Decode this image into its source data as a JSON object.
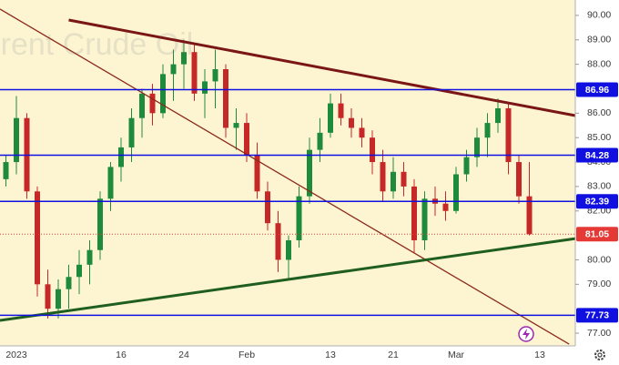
{
  "chart_data": {
    "type": "candlestick",
    "watermark": "Brent Crude Oil",
    "categories": [
      null,
      null,
      "2023",
      null,
      null,
      null,
      null,
      null,
      null,
      null,
      null,
      null,
      "16",
      null,
      null,
      null,
      null,
      null,
      "24",
      null,
      null,
      null,
      null,
      null,
      "Feb",
      null,
      null,
      null,
      null,
      null,
      null,
      null,
      "13",
      null,
      null,
      null,
      null,
      null,
      "21",
      null,
      null,
      null,
      null,
      null,
      "Mar",
      null,
      null,
      null,
      null,
      null,
      null,
      null,
      "13"
    ],
    "open": [
      83.5,
      83.3,
      84,
      85.8,
      82.8,
      79,
      78,
      78.8,
      79.3,
      79.8,
      80.4,
      82.5,
      83.8,
      84.6,
      85.8,
      86.8,
      86,
      87.6,
      88,
      88.5,
      86.8,
      87.3,
      87.8,
      85.4,
      85.6,
      84.3,
      82.8,
      81.5,
      80,
      80.8,
      82.6,
      84.5,
      85.2,
      86.4,
      85.8,
      85.4,
      85,
      84,
      82.8,
      83.6,
      83,
      80.8,
      82.5,
      82.3,
      82,
      83.5,
      84.2,
      85,
      85.6,
      86.2,
      84,
      82.6,
      null
    ],
    "high": [
      84,
      84.3,
      86.7,
      86,
      83,
      79.6,
      79.2,
      79.8,
      80.4,
      80.8,
      82.8,
      84,
      85,
      86.2,
      87,
      87.2,
      88,
      88.6,
      89,
      88.8,
      87.8,
      88.6,
      88,
      86.2,
      86,
      84.8,
      83.2,
      82,
      81,
      83,
      85,
      85.8,
      86.8,
      86.8,
      86.2,
      85.8,
      85.3,
      84.5,
      84.2,
      84,
      83.3,
      82.8,
      83,
      82.8,
      83.8,
      84.5,
      85.4,
      86,
      86.6,
      86.4,
      84.3,
      84,
      null
    ],
    "low": [
      82.8,
      83,
      83.5,
      82.5,
      78.5,
      77.6,
      77.6,
      78,
      78.6,
      79,
      80,
      82,
      83.2,
      84,
      85,
      85.5,
      85.8,
      86.5,
      87,
      86.5,
      85.8,
      86.2,
      85,
      84.5,
      84,
      82.5,
      81.2,
      79.5,
      79.2,
      80.5,
      82.3,
      84,
      85,
      85.5,
      85,
      84.6,
      83.5,
      82.4,
      82.5,
      82.6,
      80.3,
      80.4,
      81.8,
      81.6,
      81.9,
      83.2,
      83.8,
      84.2,
      85.2,
      83.5,
      82.3,
      81,
      null
    ],
    "close": [
      83.3,
      84,
      85.8,
      82.8,
      79,
      78,
      78.8,
      79.3,
      79.8,
      80.4,
      82.5,
      83.8,
      84.6,
      85.8,
      86.8,
      86,
      87.6,
      88,
      88.5,
      86.8,
      87.3,
      87.8,
      85.4,
      85.6,
      84.3,
      82.8,
      81.5,
      80,
      80.8,
      82.6,
      84.5,
      85.2,
      86.4,
      85.8,
      85.4,
      85,
      84,
      82.8,
      83.6,
      83,
      80.8,
      82.5,
      82.3,
      82,
      83.5,
      84.2,
      85,
      85.6,
      86.2,
      84,
      82.6,
      81.05,
      null
    ],
    "up_color": "#1e8a3c",
    "down_color": "#c62828",
    "ylim": [
      76.48,
      90.63
    ],
    "yticks": [
      {
        "value": 90,
        "label": "90.00"
      },
      {
        "value": 89,
        "label": "89.00"
      },
      {
        "value": 88,
        "label": "88.00"
      },
      {
        "value": 86,
        "label": "86.00"
      },
      {
        "value": 85,
        "label": "85.00"
      },
      {
        "value": 84,
        "label": "84.00"
      },
      {
        "value": 83,
        "label": "83.00"
      },
      {
        "value": 82,
        "label": "82.00"
      },
      {
        "value": 80,
        "label": "80.00"
      },
      {
        "value": 79,
        "label": "79.00"
      },
      {
        "value": 77,
        "label": "77.00"
      }
    ],
    "levels": [
      {
        "value": 86.96,
        "color": "#1010e0"
      },
      {
        "value": 84.28,
        "color": "#1010e0"
      },
      {
        "value": 82.39,
        "color": "#1010e0"
      },
      {
        "value": 77.73,
        "color": "#1010e0"
      }
    ],
    "price_line": {
      "value": 81.05,
      "color": "#e53935"
    },
    "trendlines": [
      {
        "color": "#7b1616",
        "width": 3,
        "points": [
          [
            7,
            89.81
          ],
          [
            55.4,
            85.9
          ]
        ]
      },
      {
        "color": "#8b2a1a",
        "width": 1.3,
        "points": [
          [
            0.43,
            90.26
          ],
          [
            54.8,
            76.55
          ]
        ]
      },
      {
        "color": "#1f5e1f",
        "width": 3,
        "points": [
          [
            0.43,
            77.52
          ],
          [
            55.4,
            80.87
          ]
        ]
      }
    ]
  }
}
